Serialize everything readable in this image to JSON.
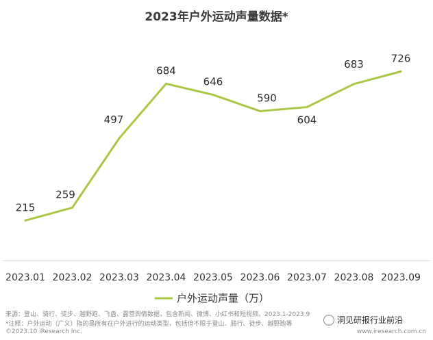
{
  "chart_data": {
    "type": "line",
    "title": "2023年户外运动声量数据*",
    "categories": [
      "2023.01",
      "2023.02",
      "2023.03",
      "2023.04",
      "2023.05",
      "2023.06",
      "2023.07",
      "2023.08",
      "2023.09"
    ],
    "series": [
      {
        "name": "户外运动声量（万）",
        "values": [
          215,
          259,
          497,
          684,
          646,
          590,
          604,
          683,
          726
        ]
      }
    ],
    "ylim": [
      150,
      760
    ],
    "xlabel": "",
    "ylabel": "",
    "legend": "bottom",
    "line_color": "#a9c645"
  },
  "notes": {
    "source": "来源：登山、骑行、徒步、越野跑、飞盘、露营舆情数据，包含新闻、微博、小红书和短视频。2023.1-2023.9",
    "definition": "*注释：户外运动（广义）指的是所有在户外进行的运动类型，包括但不限于登山、骑行、徒步、越野跑等",
    "copyright": "©2023.10 iResearch Inc."
  },
  "brand": {
    "name": "洞见研报行业前沿",
    "site": "www.iresearch.com.cn"
  }
}
